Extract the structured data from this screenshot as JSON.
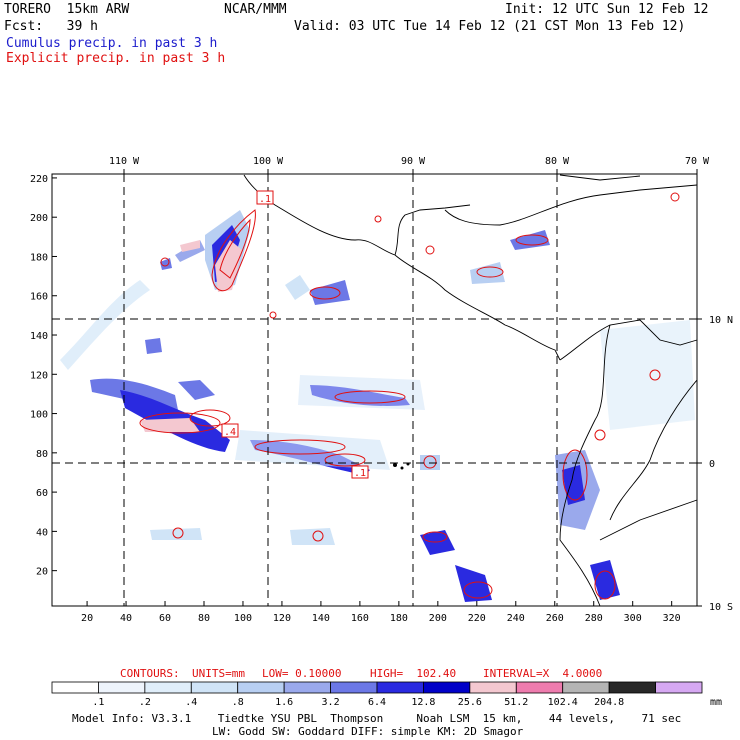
{
  "header": {
    "model": "TORERO  15km ARW",
    "center": "NCAR/MMM",
    "init": "Init: 12 UTC Sun 12 Feb 12",
    "fcst": "Fcst:   39 h",
    "valid": "Valid: 03 UTC Tue 14 Feb 12 (21 CST Mon 13 Feb 12)",
    "cumulus": "Cumulus precip. in past 3 h",
    "explicit": "Explicit precip. in past 3 h"
  },
  "axes": {
    "top_lon": [
      "110 W",
      "100 W",
      "90 W",
      "80 W",
      "70 W"
    ],
    "right_lat": [
      "10 N",
      "0",
      "10 S"
    ],
    "y_ticks": [
      "220",
      "200",
      "180",
      "160",
      "140",
      "120",
      "100",
      "80",
      "60",
      "40",
      "20"
    ],
    "x_ticks": [
      "20",
      "40",
      "60",
      "80",
      "100",
      "120",
      "140",
      "160",
      "180",
      "200",
      "220",
      "240",
      "260",
      "280",
      "300",
      "320"
    ]
  },
  "map_labels": [
    ".1",
    ".4",
    ".1"
  ],
  "contours": {
    "label": "CONTOURS:",
    "units": "UNITS=mm",
    "low": "LOW= 0.10000",
    "high": "HIGH=  102.40",
    "interval": "INTERVAL=X  4.0000"
  },
  "colorbar": {
    "unit": "mm",
    "labels": [
      ".1",
      ".2",
      ".4",
      ".8",
      "1.6",
      "3.2",
      "6.4",
      "12.8",
      "25.6",
      "51.2",
      "102.4",
      "204.8"
    ],
    "colors": [
      "#ffffff",
      "#eef4fc",
      "#e0eefa",
      "#d0e4f7",
      "#b8cff2",
      "#9aa9ec",
      "#6c78e6",
      "#2a2ae0",
      "#0000c8",
      "#f4c8d0",
      "#ee7cae",
      "#b4b4b4",
      "#282828",
      "#d6a8f2"
    ]
  },
  "footer": {
    "line1": "Model Info: V3.3.1    Tiedtke YSU PBL  Thompson     Noah LSM  15 km,    44 levels,    71 sec",
    "line2": "LW: Godd SW: Goddard DIFF: simple KM: 2D Smagor"
  }
}
